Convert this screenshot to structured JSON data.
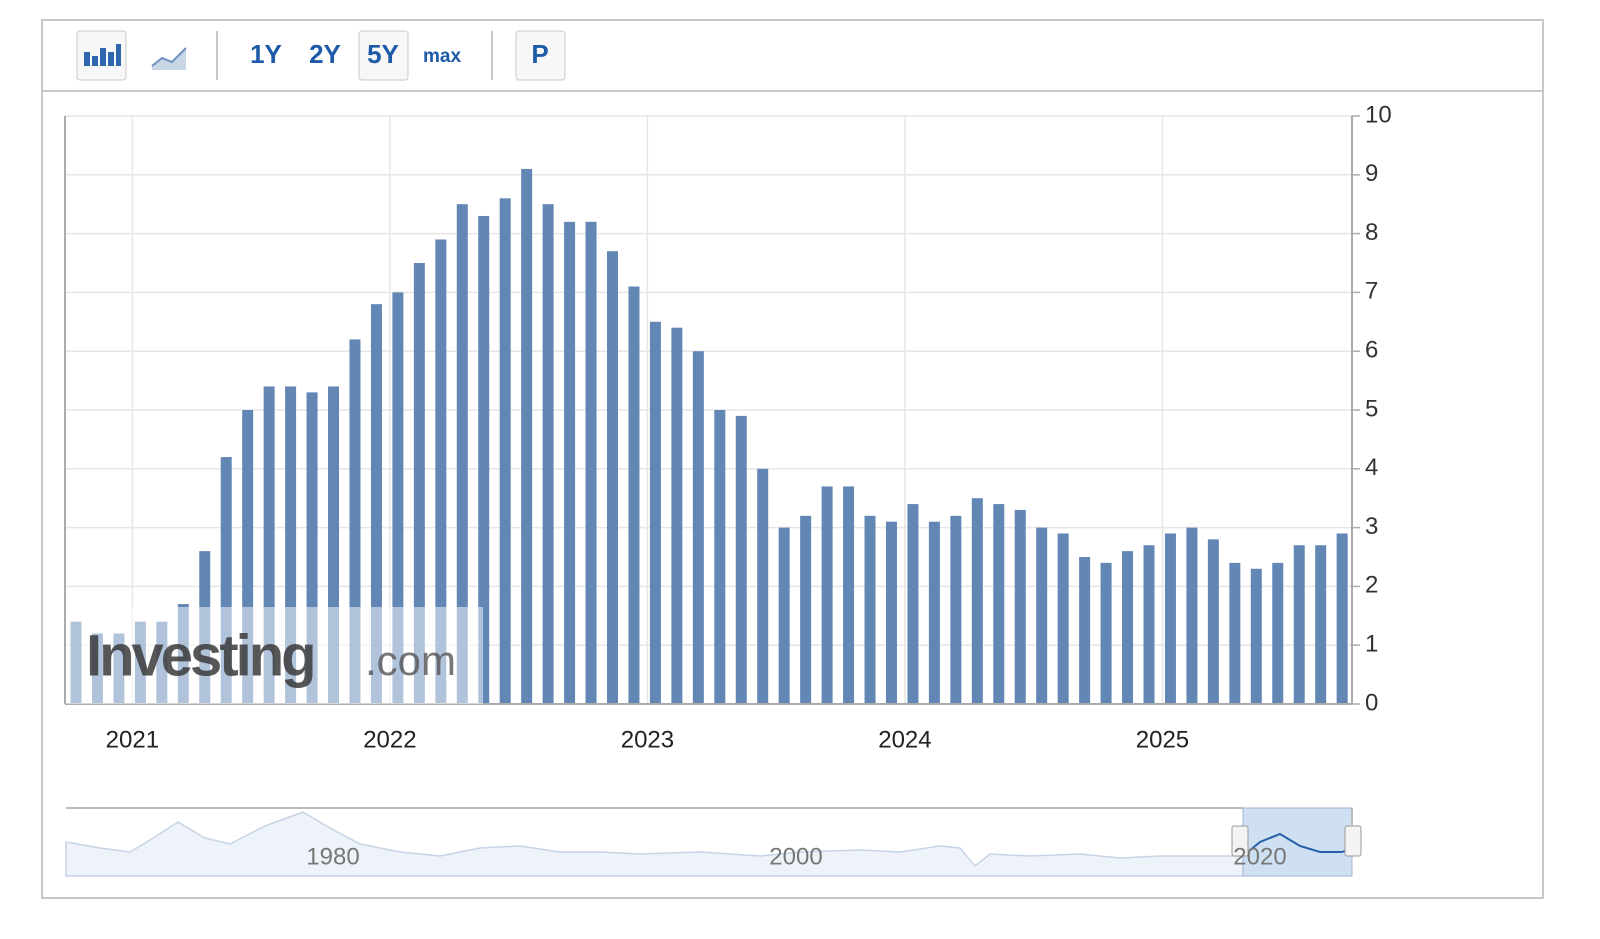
{
  "toolbar": {
    "ranges": [
      "1Y",
      "2Y",
      "5Y",
      "max"
    ],
    "extra": "P"
  },
  "watermark": {
    "brand": "Investing",
    "suffix": ".com"
  },
  "chart_data": {
    "type": "bar",
    "categories": [
      null,
      null,
      null,
      "2021",
      null,
      null,
      null,
      null,
      null,
      null,
      null,
      null,
      null,
      null,
      null,
      "2022",
      null,
      null,
      null,
      null,
      null,
      null,
      null,
      null,
      null,
      null,
      null,
      "2023",
      null,
      null,
      null,
      null,
      null,
      null,
      null,
      null,
      null,
      null,
      null,
      "2024",
      null,
      null,
      null,
      null,
      null,
      null,
      null,
      null,
      null,
      null,
      null,
      "2025",
      null,
      null,
      null,
      null,
      null,
      null,
      null,
      null
    ],
    "values": [
      1.4,
      1.2,
      1.2,
      1.4,
      1.4,
      1.7,
      2.6,
      4.2,
      5.0,
      5.4,
      5.4,
      5.3,
      5.4,
      6.2,
      6.8,
      7.0,
      7.5,
      7.9,
      8.5,
      8.3,
      8.6,
      9.1,
      8.5,
      8.2,
      8.2,
      7.7,
      7.1,
      6.5,
      6.4,
      6.0,
      5.0,
      4.9,
      4.0,
      3.0,
      3.2,
      3.7,
      3.7,
      3.2,
      3.1,
      3.4,
      3.1,
      3.2,
      3.5,
      3.4,
      3.3,
      3.0,
      2.9,
      2.5,
      2.4,
      2.6,
      2.7,
      2.9,
      3.0,
      2.8,
      2.4,
      2.3,
      2.4,
      2.7,
      2.7,
      2.9
    ],
    "color": "#6287b5",
    "ylim": [
      0,
      10
    ],
    "yticks": [
      0,
      1,
      2,
      3,
      4,
      5,
      6,
      7,
      8,
      9,
      10
    ],
    "grid": true,
    "navigator_labels": [
      "1980",
      "2000",
      "2020"
    ]
  }
}
